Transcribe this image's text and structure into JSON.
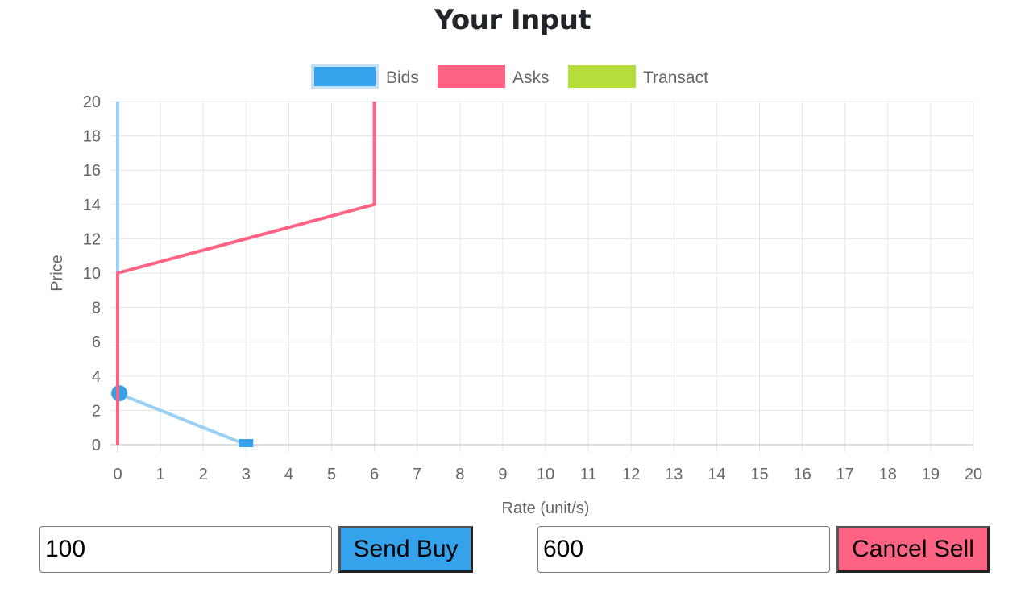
{
  "header": {
    "title": "Your Input"
  },
  "chart_data": {
    "type": "line",
    "xlabel": "Rate (unit/s)",
    "ylabel": "Price",
    "xlim": [
      0,
      20
    ],
    "ylim": [
      0,
      20
    ],
    "x_ticks": [
      0,
      1,
      2,
      3,
      4,
      5,
      6,
      7,
      8,
      9,
      10,
      11,
      12,
      13,
      14,
      15,
      16,
      17,
      18,
      19,
      20
    ],
    "y_ticks": [
      0,
      2,
      4,
      6,
      8,
      10,
      12,
      14,
      16,
      18,
      20
    ],
    "grid": true,
    "legend_position": "top",
    "series": [
      {
        "name": "Bids",
        "color": "#36a2eb",
        "line_color": "#9ad0f5",
        "points": [
          {
            "x": 0,
            "y": 20
          },
          {
            "x": 0,
            "y": 3
          },
          {
            "x": 3,
            "y": 0
          }
        ],
        "markers": [
          {
            "x": 0,
            "y": 3,
            "shape": "circle"
          },
          {
            "x": 3,
            "y": 0,
            "shape": "square"
          }
        ]
      },
      {
        "name": "Asks",
        "color": "#ff6384",
        "line_color": "#ff6384",
        "points": [
          {
            "x": 0,
            "y": 0
          },
          {
            "x": 0,
            "y": 10
          },
          {
            "x": 6,
            "y": 14
          },
          {
            "x": 6,
            "y": 20
          }
        ],
        "markers": []
      },
      {
        "name": "Transact",
        "color": "#b5dd3c",
        "line_color": "#b5dd3c",
        "points": [],
        "markers": []
      }
    ]
  },
  "controls": {
    "buy_input_value": "100",
    "buy_button_label": "Send Buy",
    "buy_button_color": "#36a2eb",
    "sell_input_value": "600",
    "sell_button_label": "Cancel Sell",
    "sell_button_color": "#ff6384"
  }
}
